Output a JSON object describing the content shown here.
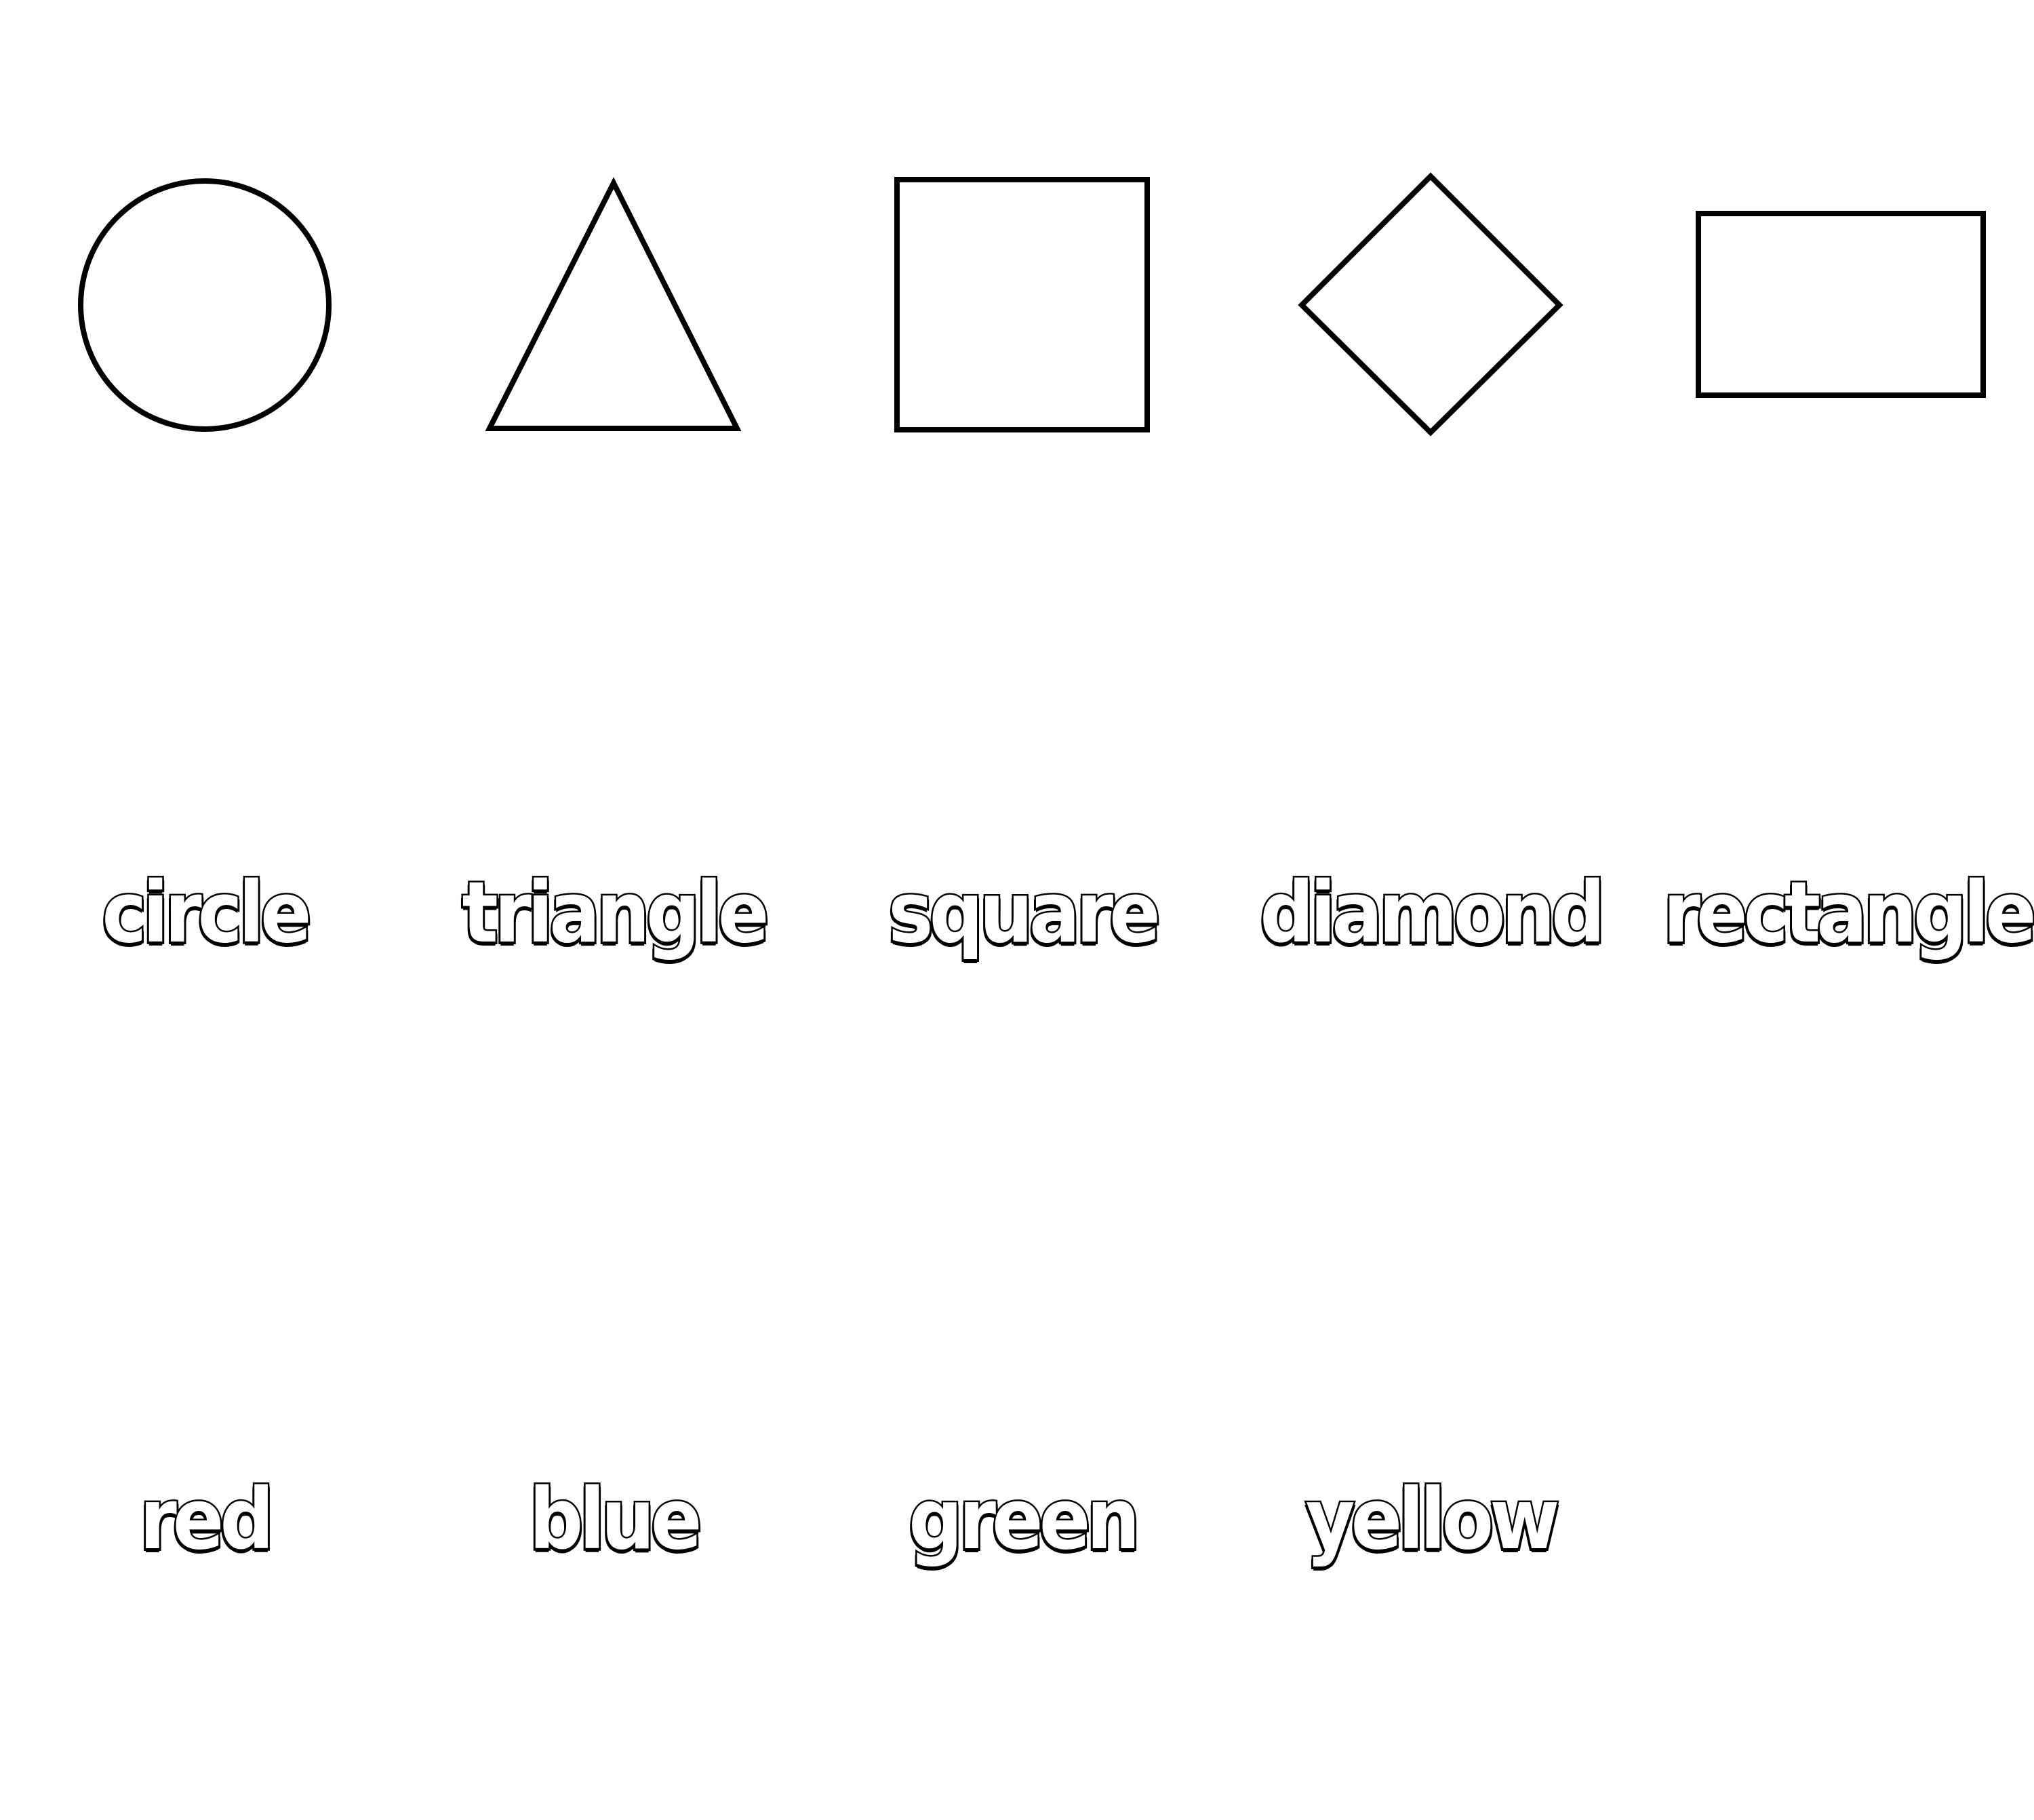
{
  "shapes": [
    {
      "icon": "circle-icon"
    },
    {
      "icon": "triangle-icon"
    },
    {
      "icon": "square-icon"
    },
    {
      "icon": "diamond-icon"
    },
    {
      "icon": "rectangle-icon"
    }
  ],
  "shape_words": [
    "circle",
    "triangle",
    "square",
    "diamond",
    "rectangle"
  ],
  "color_words": [
    "red",
    "blue",
    "green",
    "yellow"
  ]
}
